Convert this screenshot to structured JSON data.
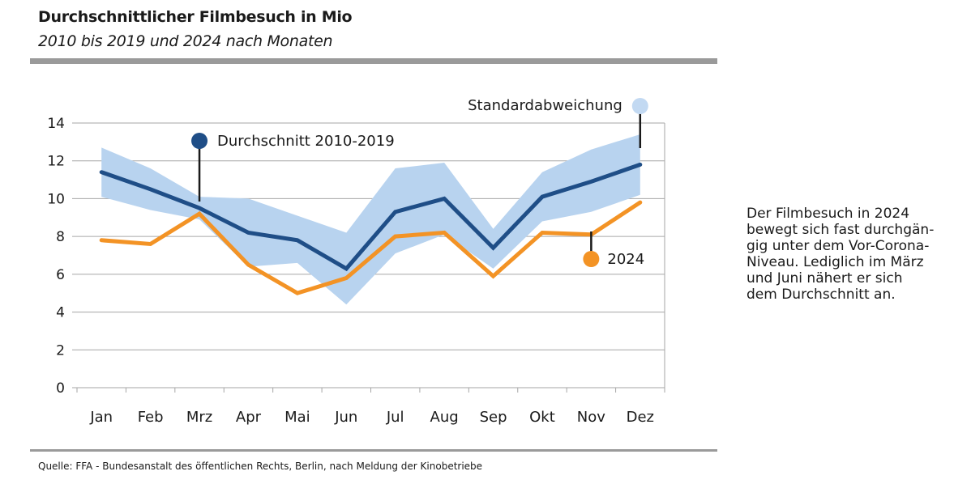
{
  "header": {
    "title": "Durchschnittlicher Filmbesuch in Mio",
    "subtitle": "2010 bis 2019 und 2024 nach Monaten"
  },
  "source": "Quelle: FFA - Bundesanstalt des öffentlichen Rechts, Berlin, nach Meldung der Kinobetriebe",
  "comment_lines": [
    "Der Filmbesuch in 2024",
    "bewegt sich fast durchgän-",
    "gig unter dem Vor-Corona-",
    "Niveau. Lediglich im März",
    "und Juni nähert er sich",
    "dem Durchschnitt an."
  ],
  "colors": {
    "average": "#1f4e87",
    "y2024": "#f39325",
    "band": "#b8d3ef",
    "band_marker": "#c2d9f2",
    "grid": "#a6a6a6"
  },
  "chart_data": {
    "type": "line",
    "categories": [
      "Jan",
      "Feb",
      "Mrz",
      "Apr",
      "Mai",
      "Jun",
      "Jul",
      "Aug",
      "Sep",
      "Okt",
      "Nov",
      "Dez"
    ],
    "ylim": [
      0,
      14
    ],
    "yticks": [
      0,
      2,
      4,
      6,
      8,
      10,
      12,
      14
    ],
    "grid": true,
    "series": [
      {
        "name": "Durchschnitt 2010-2019",
        "values": [
          11.4,
          10.5,
          9.5,
          8.2,
          7.8,
          6.3,
          9.3,
          10.0,
          7.4,
          10.1,
          10.9,
          11.8
        ]
      },
      {
        "name": "2024",
        "values": [
          7.8,
          7.6,
          9.2,
          6.5,
          5.0,
          5.8,
          8.0,
          8.2,
          5.9,
          8.2,
          8.1,
          9.8
        ]
      }
    ],
    "band": {
      "name": "Standardabweichung",
      "upper": [
        12.7,
        11.6,
        10.1,
        10.0,
        9.1,
        8.2,
        11.6,
        11.9,
        8.4,
        11.4,
        12.6,
        13.4
      ],
      "lower": [
        10.1,
        9.4,
        8.9,
        6.4,
        6.6,
        4.4,
        7.1,
        8.1,
        6.3,
        8.8,
        9.3,
        10.2
      ]
    }
  }
}
